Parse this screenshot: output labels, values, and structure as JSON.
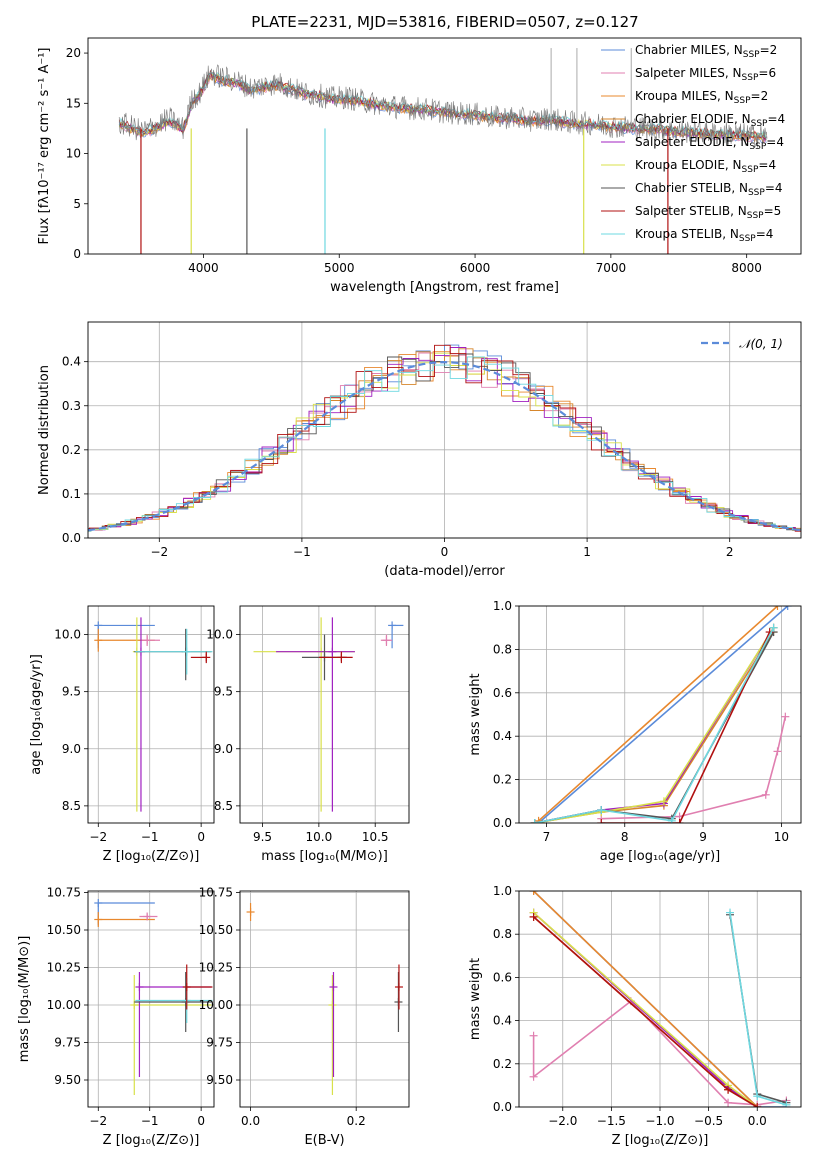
{
  "title": "PLATE=2231, MJD=53816, FIBERID=0507, z=0.127",
  "colors": {
    "Chabrier MILES": "#5b8bd9",
    "Salpeter MILES": "#e07fb0",
    "Kroupa MILES": "#e8882e",
    "Chabrier ELODIE": "#d6862c",
    "Salpeter ELODIE": "#a020c0",
    "Kroupa ELODIE": "#d8e04a",
    "Chabrier STELIB": "#555555",
    "Salpeter STELIB": "#b01010",
    "Kroupa STELIB": "#6ed8e0",
    "Normal": "#5b8bd9"
  },
  "chart_data": [
    {
      "id": "spectrum",
      "type": "line",
      "title": "PLATE=2231, MJD=53816, FIBERID=0507, z=0.127",
      "xlabel": "wavelength [Angstrom, rest frame]",
      "ylabel": "Flux [f_λ 10^-17 erg cm^-2 s^-1 A^-1]",
      "xlim": [
        3150,
        8400
      ],
      "ylim": [
        0,
        21.5
      ],
      "xticks": [
        4000,
        5000,
        6000,
        7000,
        8000
      ],
      "yticks": [
        0,
        5,
        10,
        15,
        20
      ],
      "legend": [
        "Chabrier MILES, N_SSP=2",
        "Salpeter MILES, N_SSP=6",
        "Kroupa MILES, N_SSP=2",
        "Chabrier ELODIE, N_SSP=4",
        "Salpeter ELODIE, N_SSP=4",
        "Kroupa ELODIE, N_SSP=4",
        "Chabrier STELIB, N_SSP=4",
        "Salpeter STELIB, N_SSP=5",
        "Kroupa STELIB, N_SSP=4"
      ],
      "legend_position": "upper-right",
      "data_series": {
        "name": "data",
        "x": [
          3380,
          3450,
          3550,
          3650,
          3750,
          3850,
          3920,
          3970,
          4050,
          4150,
          4250,
          4350,
          4450,
          4550,
          4650,
          4750,
          4850,
          4950,
          5050,
          5150,
          5250,
          5350,
          5450,
          5550,
          5650,
          5750,
          5850,
          5950,
          6050,
          6150,
          6250,
          6350,
          6450,
          6550,
          6650,
          6750,
          6850,
          6950,
          7050,
          7150,
          7250,
          7350,
          7450,
          7550,
          7650,
          7750,
          7850,
          7950,
          8050,
          8150
        ],
        "y": [
          13.0,
          12.8,
          12.2,
          12.8,
          13.5,
          12.5,
          15.5,
          16.0,
          18.0,
          17.5,
          17.2,
          16.5,
          16.8,
          17.0,
          16.5,
          16.0,
          15.8,
          15.5,
          15.6,
          15.3,
          15.0,
          14.8,
          14.6,
          14.5,
          14.4,
          14.2,
          14.0,
          14.0,
          13.8,
          13.6,
          13.6,
          13.4,
          13.3,
          13.5,
          13.2,
          13.0,
          13.0,
          12.8,
          12.7,
          12.6,
          12.5,
          12.5,
          12.3,
          12.2,
          12.1,
          12.0,
          12.0,
          11.9,
          11.8,
          11.7
        ]
      },
      "model_series": {
        "x": [
          3380,
          3450,
          3550,
          3650,
          3750,
          3850,
          3920,
          3970,
          4050,
          4150,
          4250,
          4350,
          4450,
          4550,
          4650,
          4750,
          4850,
          4950,
          5050,
          5150,
          5250,
          5350,
          5450,
          5550,
          5650,
          5750,
          5850,
          5950,
          6050,
          6150,
          6250,
          6350,
          6450,
          6550,
          6650,
          6750,
          6850,
          6950,
          7050,
          7150,
          7250,
          7350,
          7450,
          7550,
          7650,
          7750,
          7850,
          7950,
          8050,
          8150
        ],
        "y": [
          13.0,
          12.6,
          12.0,
          12.5,
          13.2,
          12.3,
          15.2,
          15.8,
          17.8,
          17.2,
          17.0,
          16.3,
          16.6,
          16.8,
          16.4,
          15.9,
          15.7,
          15.4,
          15.4,
          15.2,
          14.9,
          14.7,
          14.5,
          14.4,
          14.3,
          14.1,
          13.9,
          13.9,
          13.7,
          13.5,
          13.5,
          13.3,
          13.2,
          13.3,
          13.1,
          12.9,
          12.9,
          12.7,
          12.6,
          12.5,
          12.4,
          12.4,
          12.2,
          12.1,
          12.0,
          11.9,
          11.9,
          11.8,
          11.7,
          11.6
        ]
      }
    },
    {
      "id": "residuals",
      "type": "step",
      "xlabel": "(data-model)/error",
      "ylabel": "Normed distribution",
      "xlim": [
        -2.5,
        2.5
      ],
      "ylim": [
        0,
        0.49
      ],
      "xticks": [
        -2,
        -1,
        0,
        1,
        2
      ],
      "yticks": [
        0.0,
        0.1,
        0.2,
        0.3,
        0.4
      ],
      "legend": [
        "𝒩(0, 1)"
      ],
      "legend_position": "upper-right",
      "normal_curve": {
        "mu": 0,
        "sigma": 1
      }
    },
    {
      "id": "age-vs-Z",
      "type": "errorbar",
      "xlabel": "Z [log10(Z/Z⊙)]",
      "ylabel": "age  [log10(age/yr)]",
      "xlim": [
        -2.2,
        0.25
      ],
      "ylim": [
        8.35,
        10.25
      ],
      "xticks": [
        -2,
        -1,
        0
      ],
      "yticks": [
        8.5,
        9.0,
        9.5,
        10.0
      ],
      "points": [
        {
          "model": "Chabrier MILES",
          "x": -2.0,
          "xerr": [
            0,
            1.1
          ],
          "y": 10.08,
          "yerr": [
            0.2,
            0
          ]
        },
        {
          "model": "Kroupa MILES",
          "x": -2.0,
          "xerr": [
            0,
            1.1
          ],
          "y": 9.95,
          "yerr": [
            0.1,
            0.1
          ]
        },
        {
          "model": "Salpeter MILES",
          "x": -1.05,
          "xerr": [
            0.12,
            0.25
          ],
          "y": 9.95,
          "yerr": [
            0.05,
            0.05
          ]
        },
        {
          "model": "Kroupa ELODIE",
          "x": -1.25,
          "xerr": [
            0,
            0
          ],
          "y": 9.85,
          "yerr": [
            1.4,
            0.3
          ]
        },
        {
          "model": "Salpeter ELODIE",
          "x": -1.17,
          "xerr": [
            0,
            0
          ],
          "y": 9.85,
          "yerr": [
            1.4,
            0.3
          ]
        },
        {
          "model": "Chabrier STELIB",
          "x": -0.3,
          "xerr": [
            1.0,
            0.5
          ],
          "y": 9.85,
          "yerr": [
            0.25,
            0.2
          ]
        },
        {
          "model": "Kroupa STELIB",
          "x": -0.28,
          "xerr": [
            1.0,
            0.5
          ],
          "y": 9.85,
          "yerr": [
            0.2,
            0.2
          ]
        },
        {
          "model": "Salpeter STELIB",
          "x": 0.1,
          "xerr": [
            0.3,
            0
          ],
          "y": 9.8,
          "yerr": [
            0.05,
            0.05
          ]
        }
      ]
    },
    {
      "id": "age-vs-mass",
      "type": "errorbar",
      "xlabel": "mass [log10(M/M⊙)]",
      "ylabel": "",
      "xlim": [
        9.3,
        10.8
      ],
      "ylim": [
        8.35,
        10.25
      ],
      "xticks": [
        9.5,
        10.0,
        10.5
      ],
      "yticks": [
        8.5,
        9.0,
        9.5,
        10.0
      ],
      "points": [
        {
          "model": "Chabrier MILES",
          "x": 10.65,
          "xerr": [
            0,
            0.1
          ],
          "y": 10.08,
          "yerr": [
            0.2,
            0
          ]
        },
        {
          "model": "Salpeter MILES",
          "x": 10.6,
          "xerr": [
            0.05,
            0.05
          ],
          "y": 9.95,
          "yerr": [
            0.05,
            0.05
          ]
        },
        {
          "model": "Kroupa ELODIE",
          "x": 10.02,
          "xerr": [
            0.6,
            0.3
          ],
          "y": 9.85,
          "yerr": [
            1.4,
            0.3
          ]
        },
        {
          "model": "Salpeter ELODIE",
          "x": 10.12,
          "xerr": [
            0.5,
            0.2
          ],
          "y": 9.85,
          "yerr": [
            1.4,
            0.3
          ]
        },
        {
          "model": "Chabrier STELIB",
          "x": 10.05,
          "xerr": [
            0.2,
            0.2
          ],
          "y": 9.8,
          "yerr": [
            0.2,
            0.2
          ]
        },
        {
          "model": "Salpeter STELIB",
          "x": 10.2,
          "xerr": [
            0.2,
            0.1
          ],
          "y": 9.8,
          "yerr": [
            0.05,
            0.05
          ]
        }
      ]
    },
    {
      "id": "weight-vs-age",
      "type": "line",
      "xlabel": "age  [log10(age/yr)]",
      "ylabel": "mass weight",
      "xlim": [
        6.65,
        10.25
      ],
      "ylim": [
        0,
        1.0
      ],
      "xticks": [
        7,
        8,
        9,
        10
      ],
      "yticks": [
        0.0,
        0.2,
        0.4,
        0.6,
        0.8,
        1.0
      ],
      "series": [
        {
          "name": "Chabrier MILES",
          "x": [
            6.9,
            10.08
          ],
          "y": [
            0.0,
            1.0
          ]
        },
        {
          "name": "Salpeter MILES",
          "x": [
            7.7,
            8.7,
            9.8,
            9.95,
            10.05
          ],
          "y": [
            0.02,
            0.03,
            0.13,
            0.33,
            0.49
          ]
        },
        {
          "name": "Kroupa MILES",
          "x": [
            6.9,
            9.95
          ],
          "y": [
            0.01,
            1.0
          ]
        },
        {
          "name": "Chabrier ELODIE",
          "x": [
            6.85,
            7.7,
            8.5,
            9.9
          ],
          "y": [
            0.0,
            0.05,
            0.08,
            0.88
          ]
        },
        {
          "name": "Salpeter ELODIE",
          "x": [
            6.85,
            7.7,
            8.5,
            9.9
          ],
          "y": [
            0.0,
            0.06,
            0.09,
            0.9
          ]
        },
        {
          "name": "Kroupa ELODIE",
          "x": [
            6.85,
            7.7,
            8.5,
            9.9
          ],
          "y": [
            0.0,
            0.05,
            0.1,
            0.9
          ]
        },
        {
          "name": "Chabrier STELIB",
          "x": [
            6.85,
            7.7,
            8.6,
            9.9
          ],
          "y": [
            0.0,
            0.06,
            0.02,
            0.88
          ]
        },
        {
          "name": "Salpeter STELIB",
          "x": [
            7.7,
            8.7,
            9.85
          ],
          "y": [
            0.0,
            0.0,
            0.88
          ]
        },
        {
          "name": "Kroupa STELIB",
          "x": [
            6.85,
            7.7,
            8.6,
            9.9
          ],
          "y": [
            0.0,
            0.06,
            0.01,
            0.9
          ]
        }
      ]
    },
    {
      "id": "mass-vs-Z",
      "type": "errorbar",
      "xlabel": "Z [log10(Z/Z⊙)]",
      "ylabel": "mass [log10(M/M⊙)]",
      "xlim": [
        -2.2,
        0.25
      ],
      "ylim": [
        9.32,
        10.76
      ],
      "xticks": [
        -2,
        -1,
        0
      ],
      "yticks": [
        9.5,
        9.75,
        10.0,
        10.25,
        10.5,
        10.75
      ],
      "points": [
        {
          "model": "Chabrier MILES",
          "x": -2.0,
          "xerr": [
            0,
            1.1
          ],
          "y": 10.68,
          "yerr": [
            0.15,
            0
          ]
        },
        {
          "model": "Kroupa MILES",
          "x": -2.0,
          "xerr": [
            0,
            1.1
          ],
          "y": 10.57,
          "yerr": [
            0.05,
            0.05
          ]
        },
        {
          "model": "Salpeter MILES",
          "x": -1.05,
          "xerr": [
            0.15,
            0.2
          ],
          "y": 10.59,
          "yerr": [
            0.02,
            0.02
          ]
        },
        {
          "model": "Kroupa ELODIE",
          "x": -1.3,
          "xerr": [
            0,
            1.5
          ],
          "y": 10.0,
          "yerr": [
            0.6,
            0.2
          ]
        },
        {
          "model": "Salpeter ELODIE",
          "x": -1.2,
          "xerr": [
            0,
            1.4
          ],
          "y": 10.12,
          "yerr": [
            0.6,
            0.1
          ]
        },
        {
          "model": "Chabrier STELIB",
          "x": -0.3,
          "xerr": [
            1.0,
            0.5
          ],
          "y": 10.02,
          "yerr": [
            0.2,
            0.2
          ]
        },
        {
          "model": "Kroupa STELIB",
          "x": -0.28,
          "xerr": [
            1.0,
            0.5
          ],
          "y": 10.03,
          "yerr": [
            0.15,
            0.15
          ]
        },
        {
          "model": "Salpeter STELIB",
          "x": -0.28,
          "xerr": [
            0,
            0.5
          ],
          "y": 10.12,
          "yerr": [
            0.15,
            0.15
          ]
        }
      ]
    },
    {
      "id": "mass-vs-EBV",
      "type": "errorbar",
      "xlabel": "E(B-V)",
      "ylabel": "",
      "xlim": [
        -0.02,
        0.3
      ],
      "ylim": [
        9.32,
        10.76
      ],
      "xticks": [
        0.0,
        0.2
      ],
      "yticks": [
        9.5,
        9.75,
        10.0,
        10.25,
        10.5,
        10.75
      ],
      "points": [
        {
          "model": "Kroupa MILES",
          "x": 0.0,
          "xerr": [
            0,
            0
          ],
          "y": 10.62,
          "yerr": [
            0.06,
            0.06
          ]
        },
        {
          "model": "Kroupa ELODIE",
          "x": 0.155,
          "xerr": [
            0,
            0
          ],
          "y": 10.0,
          "yerr": [
            0.6,
            0.2
          ]
        },
        {
          "model": "Salpeter ELODIE",
          "x": 0.157,
          "xerr": [
            0,
            0
          ],
          "y": 10.12,
          "yerr": [
            0.6,
            0.1
          ]
        },
        {
          "model": "Chabrier STELIB",
          "x": 0.28,
          "xerr": [
            0,
            0
          ],
          "y": 10.02,
          "yerr": [
            0.2,
            0.2
          ]
        },
        {
          "model": "Salpeter STELIB",
          "x": 0.281,
          "xerr": [
            0,
            0
          ],
          "y": 10.12,
          "yerr": [
            0.15,
            0.15
          ]
        }
      ]
    },
    {
      "id": "weight-vs-Z",
      "type": "line",
      "xlabel": "Z [log10(Z/Z⊙)]",
      "ylabel": "mass weight",
      "xlim": [
        -2.45,
        0.45
      ],
      "ylim": [
        0,
        1.0
      ],
      "xticks": [
        -2.0,
        -1.5,
        -1.0,
        -0.5,
        0.0
      ],
      "yticks": [
        0.0,
        0.2,
        0.4,
        0.6,
        0.8,
        1.0
      ],
      "series": [
        {
          "name": "Chabrier MILES",
          "x": [
            -2.3,
            0.0,
            0.3
          ],
          "y": [
            1.0,
            0.0,
            0.0
          ]
        },
        {
          "name": "Salpeter MILES",
          "x": [
            -2.3,
            -2.3,
            -1.3,
            -0.3,
            0.0,
            0.3
          ],
          "y": [
            0.33,
            0.14,
            0.49,
            0.02,
            0.01,
            0.03
          ]
        },
        {
          "name": "Kroupa MILES",
          "x": [
            -2.3,
            0.0
          ],
          "y": [
            1.0,
            0.0
          ]
        },
        {
          "name": "Chabrier ELODIE",
          "x": [
            -2.3,
            -0.3,
            0.0
          ],
          "y": [
            0.88,
            0.08,
            0.0
          ]
        },
        {
          "name": "Salpeter ELODIE",
          "x": [
            -2.3,
            -0.3,
            0.0
          ],
          "y": [
            0.9,
            0.09,
            0.0
          ]
        },
        {
          "name": "Kroupa ELODIE",
          "x": [
            -2.3,
            -0.3,
            0.0
          ],
          "y": [
            0.9,
            0.1,
            0.0
          ]
        },
        {
          "name": "Chabrier STELIB",
          "x": [
            -0.28,
            0.0,
            0.3
          ],
          "y": [
            0.89,
            0.06,
            0.02
          ]
        },
        {
          "name": "Salpeter STELIB",
          "x": [
            -2.3,
            -0.3,
            0.0
          ],
          "y": [
            0.88,
            0.08,
            0.0
          ]
        },
        {
          "name": "Kroupa STELIB",
          "x": [
            -0.28,
            0.0,
            0.3
          ],
          "y": [
            0.9,
            0.05,
            0.01
          ]
        }
      ]
    }
  ]
}
